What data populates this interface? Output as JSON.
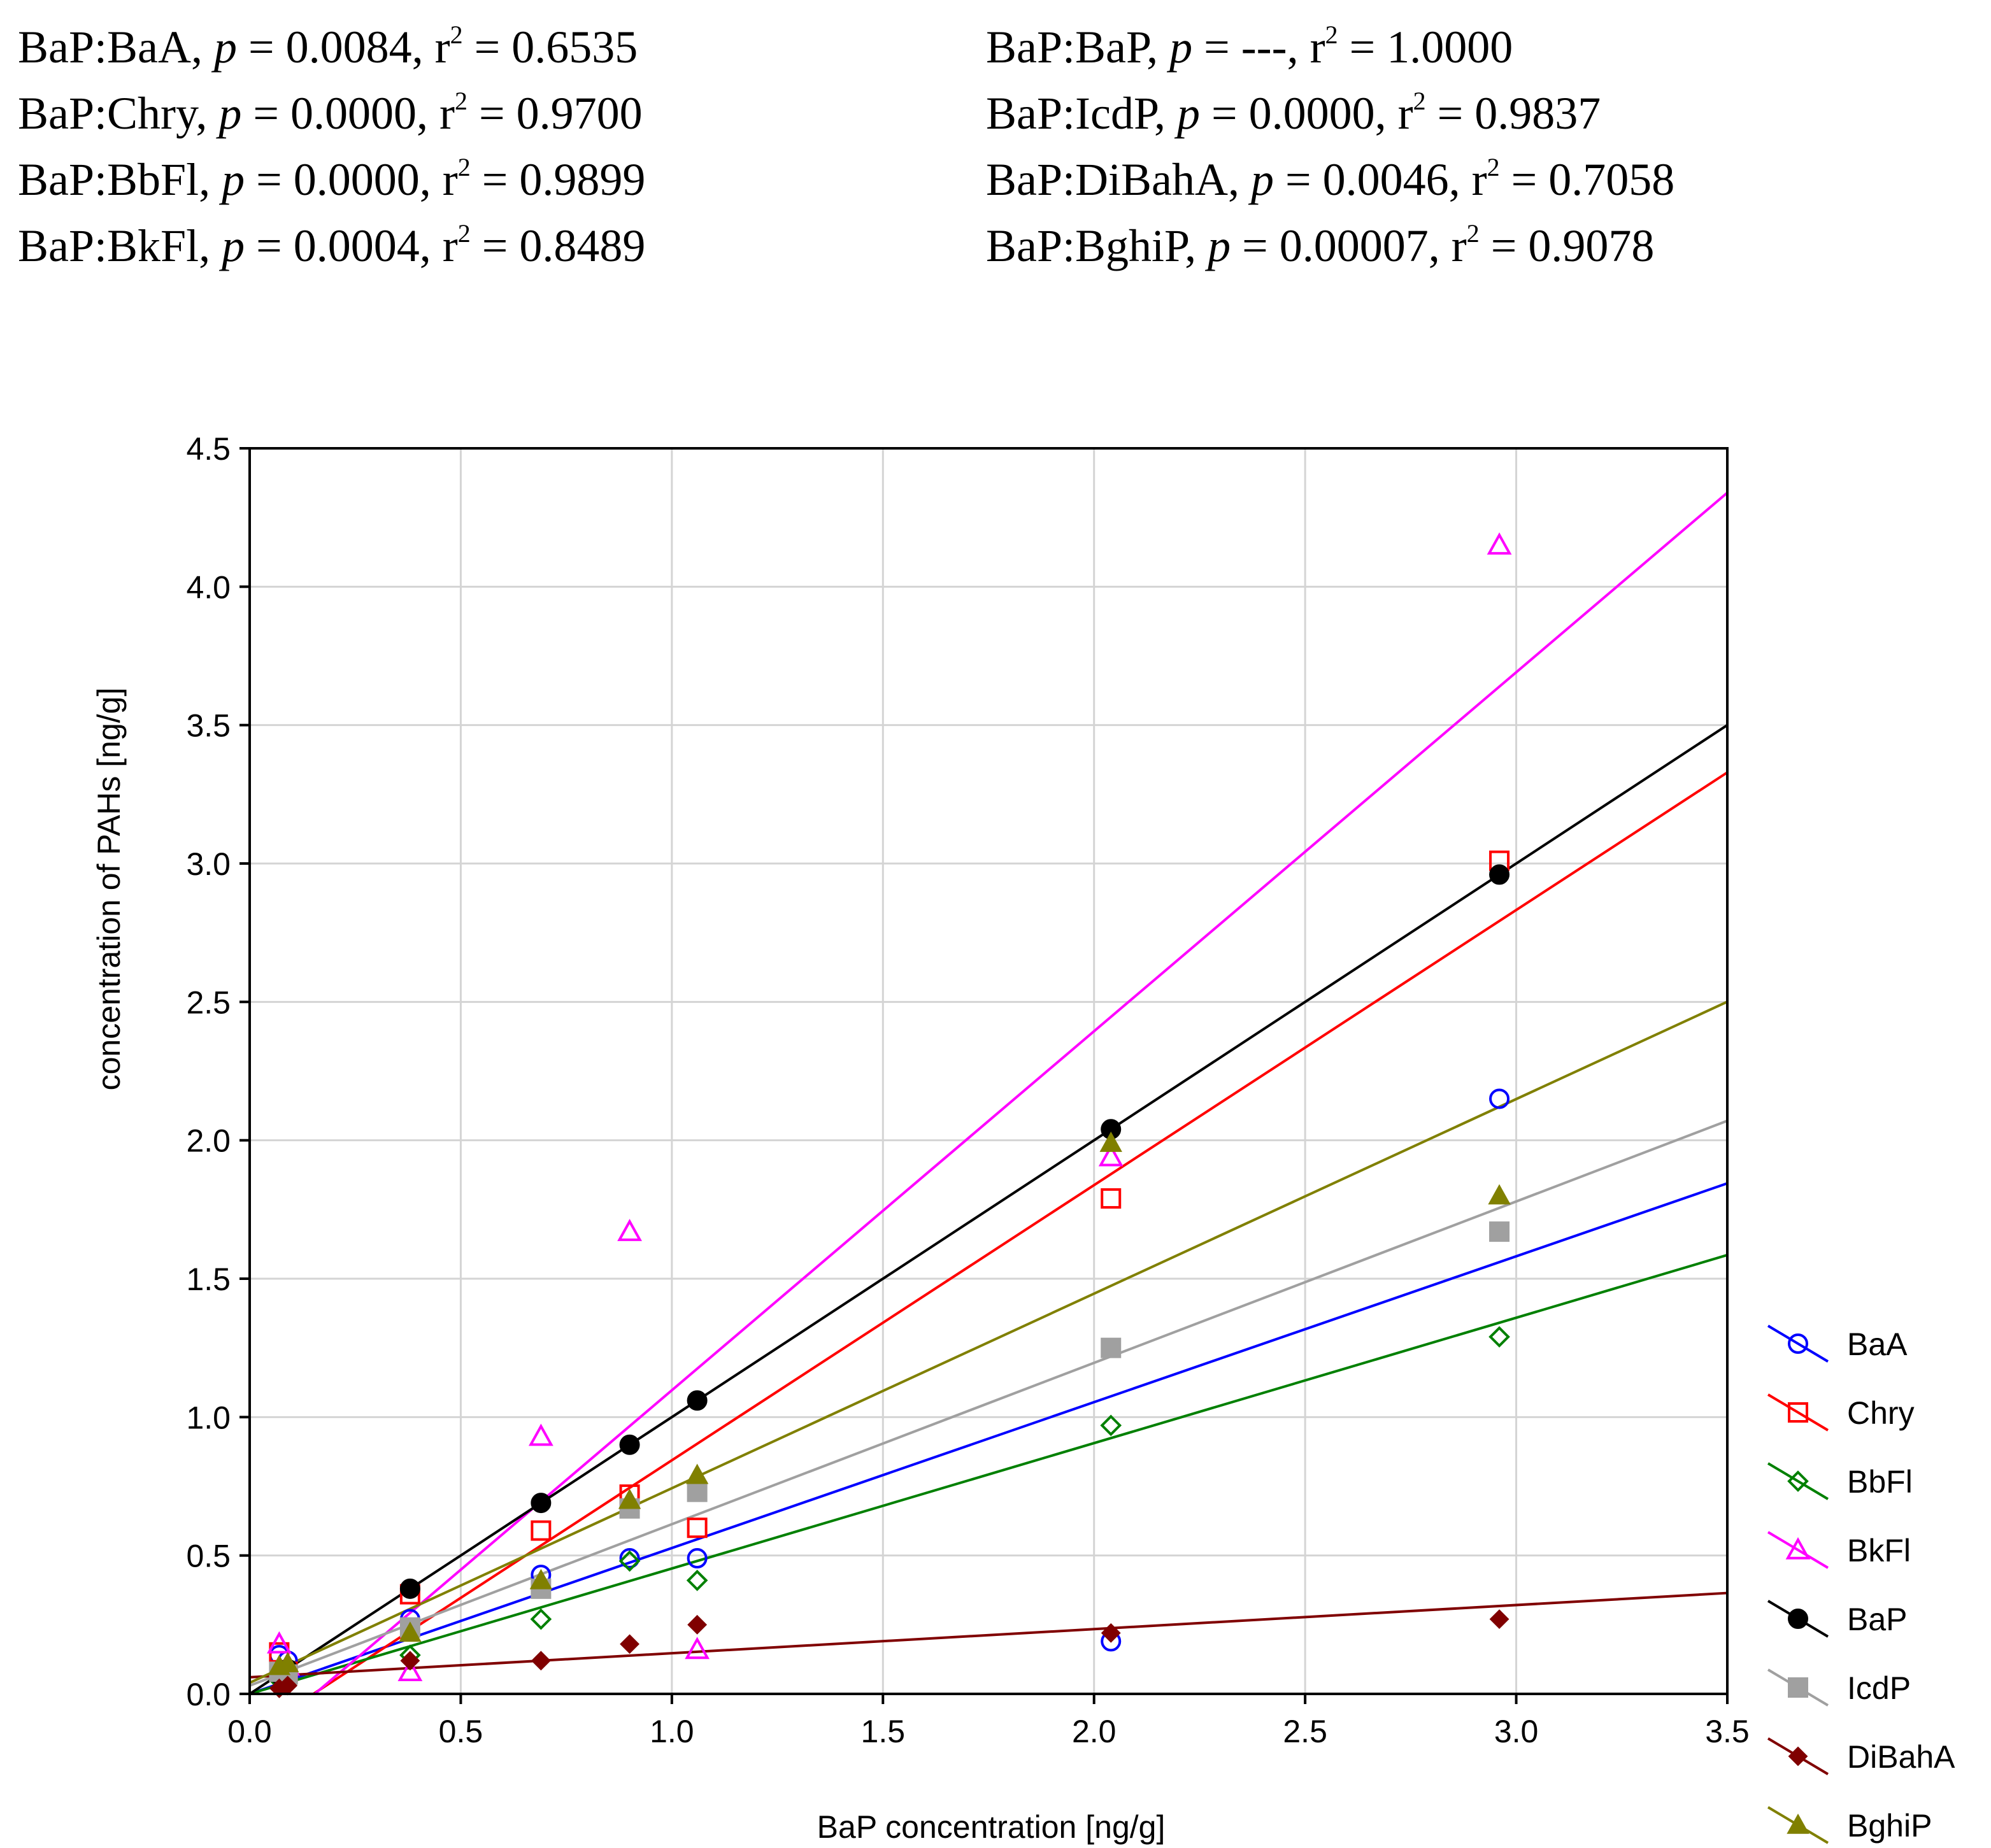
{
  "stats": {
    "left": [
      {
        "pair": "BaP:BaA",
        "p": "0.0084",
        "r2": "0.6535"
      },
      {
        "pair": "BaP:Chry",
        "p": "0.0000",
        "r2": "0.9700"
      },
      {
        "pair": "BaP:BbFl",
        "p": "0.0000",
        "r2": "0.9899"
      },
      {
        "pair": "BaP:BkFl",
        "p": "0.0004",
        "r2": "0.8489"
      }
    ],
    "right": [
      {
        "pair": "BaP:BaP",
        "p": "---",
        "r2": "1.0000"
      },
      {
        "pair": "BaP:IcdP",
        "p": "0.0000",
        "r2": "0.9837"
      },
      {
        "pair": "BaP:DiBahA",
        "p": "0.0046",
        "r2": "0.7058"
      },
      {
        "pair": "BaP:BghiP",
        "p": "0.00007",
        "r2": "0.9078"
      }
    ],
    "p_symbol": "p",
    "r_symbol": "r",
    "r_exponent": "2"
  },
  "chart_data": {
    "type": "scatter",
    "xlabel": "BaP concentration [ng/g]",
    "ylabel": "concentration of PAHs [ng/g]",
    "xlim": [
      0,
      3.5
    ],
    "ylim": [
      0,
      4.5
    ],
    "xticks": [
      "0.0",
      "0.5",
      "1.0",
      "1.5",
      "2.0",
      "2.5",
      "3.0",
      "3.5"
    ],
    "yticks": [
      "0.0",
      "0.5",
      "1.0",
      "1.5",
      "2.0",
      "2.5",
      "3.0",
      "3.5",
      "4.0",
      "4.5"
    ],
    "grid": true,
    "legend_position": "right-bottom",
    "x": [
      0.07,
      0.09,
      0.38,
      0.69,
      0.9,
      1.06,
      2.04,
      2.96
    ],
    "series": [
      {
        "name": "BaA",
        "color": "#0000ff",
        "marker": "circle-open",
        "values": [
          0.14,
          0.12,
          0.27,
          0.43,
          0.49,
          0.49,
          0.19,
          2.15
        ],
        "fit": [
          0.0,
          0.527
        ]
      },
      {
        "name": "Chry",
        "color": "#ff0000",
        "marker": "square-open",
        "values": [
          0.15,
          0.08,
          0.36,
          0.59,
          0.72,
          0.6,
          1.79,
          3.01
        ],
        "fit": [
          -0.15,
          0.994
        ]
      },
      {
        "name": "BbFl",
        "color": "#008000",
        "marker": "diamond-open",
        "values": [
          0.05,
          0.07,
          0.14,
          0.27,
          0.48,
          0.41,
          0.97,
          1.29
        ],
        "fit": [
          0.0,
          0.453
        ]
      },
      {
        "name": "BkFl",
        "color": "#ff00ff",
        "marker": "triangle-open",
        "values": [
          0.18,
          0.1,
          0.08,
          0.93,
          1.67,
          0.16,
          1.94,
          4.15
        ],
        "fit": [
          -0.2,
          1.297
        ]
      },
      {
        "name": "BaP",
        "color": "#000000",
        "marker": "circle-filled",
        "values": [
          0.07,
          0.09,
          0.38,
          0.69,
          0.9,
          1.06,
          2.04,
          2.96
        ],
        "fit": [
          0.0,
          1.0
        ]
      },
      {
        "name": "IcdP",
        "color": "#a0a0a0",
        "marker": "square-filled",
        "values": [
          0.08,
          0.07,
          0.24,
          0.38,
          0.67,
          0.73,
          1.25,
          1.67
        ],
        "fit": [
          0.03,
          0.583
        ]
      },
      {
        "name": "DiBahA",
        "color": "#800000",
        "marker": "diamond-filled",
        "values": [
          0.02,
          0.03,
          0.12,
          0.12,
          0.18,
          0.25,
          0.22,
          0.27
        ],
        "fit": [
          0.06,
          0.087
        ]
      },
      {
        "name": "BghiP",
        "color": "#808000",
        "marker": "triangle-filled",
        "values": [
          0.1,
          0.11,
          0.22,
          0.41,
          0.7,
          0.79,
          1.99,
          1.8
        ],
        "fit": [
          0.04,
          0.703
        ]
      }
    ]
  }
}
